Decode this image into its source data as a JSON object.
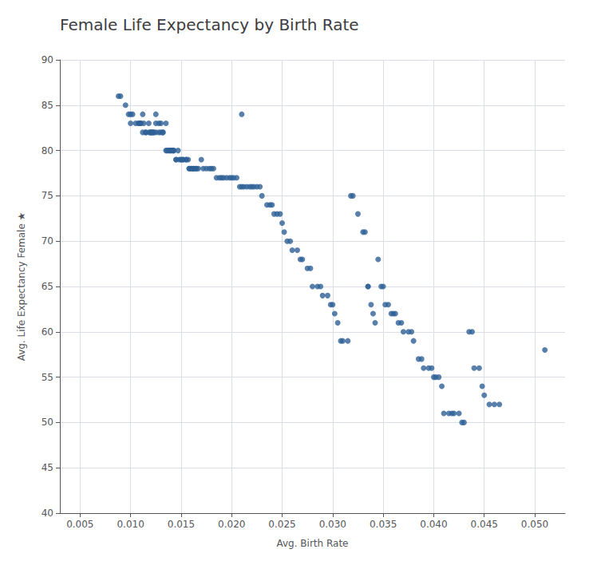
{
  "chart_data": {
    "type": "scatter",
    "title": "Female Life Expectancy by Birth Rate",
    "xlabel": "Avg. Birth Rate",
    "ylabel": "Avg. Life Expectancy Female ★",
    "color": "#2e6096",
    "grid": true,
    "xlim": [
      0.003,
      0.053
    ],
    "ylim": [
      40,
      90
    ],
    "xticks": [
      0.005,
      {
        "value": 0.01,
        "label": "0.010"
      },
      0.015,
      {
        "value": 0.02,
        "label": "0.020"
      },
      0.025,
      {
        "value": 0.03,
        "label": "0.030"
      },
      0.035,
      {
        "value": 0.04,
        "label": "0.040"
      },
      0.045,
      {
        "value": 0.05,
        "label": "0.050"
      }
    ],
    "yticks": [
      40,
      45,
      50,
      55,
      60,
      65,
      70,
      75,
      80,
      85,
      90
    ],
    "x": [
      0.0088,
      0.009,
      0.0095,
      0.0098,
      0.01,
      0.01,
      0.0102,
      0.0105,
      0.0108,
      0.0108,
      0.011,
      0.011,
      0.0112,
      0.0112,
      0.0113,
      0.0115,
      0.0115,
      0.0118,
      0.0118,
      0.012,
      0.012,
      0.012,
      0.0122,
      0.0122,
      0.0123,
      0.0125,
      0.0125,
      0.0125,
      0.0128,
      0.0128,
      0.013,
      0.013,
      0.0132,
      0.0132,
      0.0135,
      0.0135,
      0.0136,
      0.0138,
      0.0138,
      0.014,
      0.014,
      0.0142,
      0.0142,
      0.0143,
      0.0145,
      0.0145,
      0.0147,
      0.0148,
      0.015,
      0.015,
      0.0152,
      0.0152,
      0.0155,
      0.0155,
      0.0157,
      0.0158,
      0.0158,
      0.016,
      0.016,
      0.0162,
      0.0162,
      0.0163,
      0.0165,
      0.0165,
      0.0167,
      0.017,
      0.0172,
      0.0175,
      0.0178,
      0.018,
      0.0182,
      0.0185,
      0.0188,
      0.019,
      0.0192,
      0.0195,
      0.0198,
      0.02,
      0.0202,
      0.0205,
      0.0208,
      0.021,
      0.0212,
      0.0215,
      0.0218,
      0.022,
      0.0222,
      0.0225,
      0.0228,
      0.023,
      0.0235,
      0.0238,
      0.024,
      0.0242,
      0.0245,
      0.0248,
      0.025,
      0.021,
      0.0252,
      0.0255,
      0.0258,
      0.026,
      0.0265,
      0.0268,
      0.027,
      0.0275,
      0.0278,
      0.028,
      0.0285,
      0.0288,
      0.029,
      0.0295,
      0.0298,
      0.03,
      0.0302,
      0.0305,
      0.0308,
      0.031,
      0.0315,
      0.0318,
      0.032,
      0.0325,
      0.033,
      0.0332,
      0.0335,
      0.0335,
      0.0338,
      0.034,
      0.0342,
      0.0345,
      0.0348,
      0.035,
      0.0352,
      0.0355,
      0.0358,
      0.036,
      0.0362,
      0.0365,
      0.0368,
      0.037,
      0.0375,
      0.0378,
      0.038,
      0.0385,
      0.0388,
      0.039,
      0.0395,
      0.0398,
      0.04,
      0.0402,
      0.0405,
      0.0408,
      0.041,
      0.0415,
      0.0418,
      0.042,
      0.0425,
      0.0428,
      0.043,
      0.0435,
      0.0438,
      0.044,
      0.0445,
      0.0448,
      0.045,
      0.0455,
      0.046,
      0.0465,
      0.051
    ],
    "values": [
      86,
      86,
      85,
      84,
      84,
      83,
      84,
      83,
      83,
      83,
      83,
      83,
      84,
      82,
      83,
      82,
      82,
      83,
      82,
      82,
      82,
      82,
      82,
      82,
      82,
      84,
      83,
      82,
      83,
      82,
      83,
      82,
      82,
      82,
      83,
      80,
      80,
      80,
      80,
      80,
      80,
      80,
      80,
      80,
      79,
      79,
      80,
      79,
      79,
      79,
      79,
      79,
      79,
      79,
      79,
      78,
      78,
      78,
      78,
      78,
      78,
      78,
      78,
      78,
      78,
      79,
      78,
      78,
      78,
      78,
      78,
      77,
      77,
      77,
      77,
      77,
      77,
      77,
      77,
      77,
      76,
      76,
      76,
      76,
      76,
      76,
      76,
      76,
      76,
      75,
      74,
      74,
      74,
      73,
      73,
      73,
      72,
      84,
      71,
      70,
      70,
      69,
      69,
      68,
      68,
      67,
      67,
      65,
      65,
      65,
      64,
      64,
      63,
      63,
      62,
      61,
      59,
      59,
      59,
      75,
      75,
      73,
      71,
      71,
      65,
      65,
      63,
      62,
      61,
      68,
      65,
      65,
      63,
      63,
      62,
      62,
      62,
      61,
      61,
      60,
      60,
      60,
      59,
      57,
      57,
      56,
      56,
      56,
      55,
      55,
      55,
      54,
      51,
      51,
      51,
      51,
      51,
      50,
      50,
      60,
      60,
      56,
      56,
      54,
      53,
      52,
      52,
      52,
      58
    ]
  }
}
